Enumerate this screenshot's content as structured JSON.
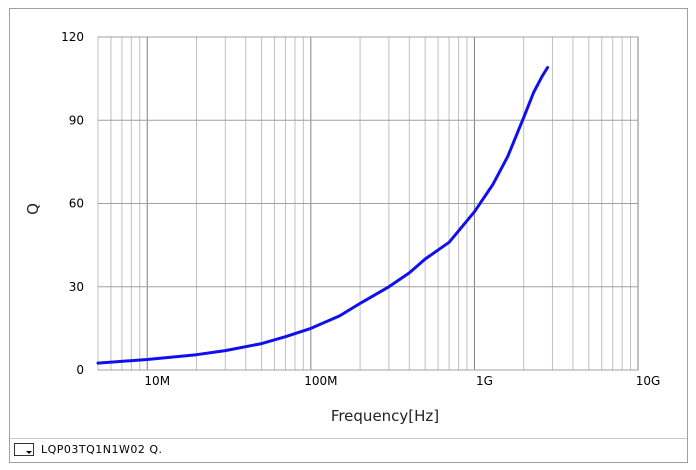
{
  "chart_data": {
    "type": "line",
    "xlabel": "Frequency[Hz]",
    "ylabel": "Q",
    "x_scale": "log",
    "xlim": [
      5000000,
      10000000000
    ],
    "ylim": [
      0,
      120
    ],
    "x_ticks": [
      {
        "value": 10000000,
        "label": "10M"
      },
      {
        "value": 100000000,
        "label": "100M"
      },
      {
        "value": 1000000000,
        "label": "1G"
      },
      {
        "value": 10000000000,
        "label": "10G"
      }
    ],
    "y_ticks": [
      {
        "value": 0,
        "label": "0"
      },
      {
        "value": 30,
        "label": "30"
      },
      {
        "value": 60,
        "label": "60"
      },
      {
        "value": 90,
        "label": "90"
      },
      {
        "value": 120,
        "label": "120"
      }
    ],
    "grid": true,
    "legend_position": "bottom-left",
    "series": [
      {
        "name": "LQP03TQ1N1W02  Q.",
        "color": "#1010ee",
        "x": [
          5000000,
          10000000,
          20000000,
          30000000,
          50000000,
          70000000,
          100000000,
          150000000,
          200000000,
          300000000,
          400000000,
          500000000,
          700000000,
          1000000000,
          1300000000,
          1600000000,
          2000000000,
          2300000000,
          2600000000,
          2800000000
        ],
        "y": [
          2.5,
          3.8,
          5.5,
          7,
          9.5,
          12,
          15,
          19.5,
          24,
          30,
          35,
          40,
          46,
          57,
          67,
          77,
          91,
          100,
          106,
          109
        ]
      }
    ]
  }
}
